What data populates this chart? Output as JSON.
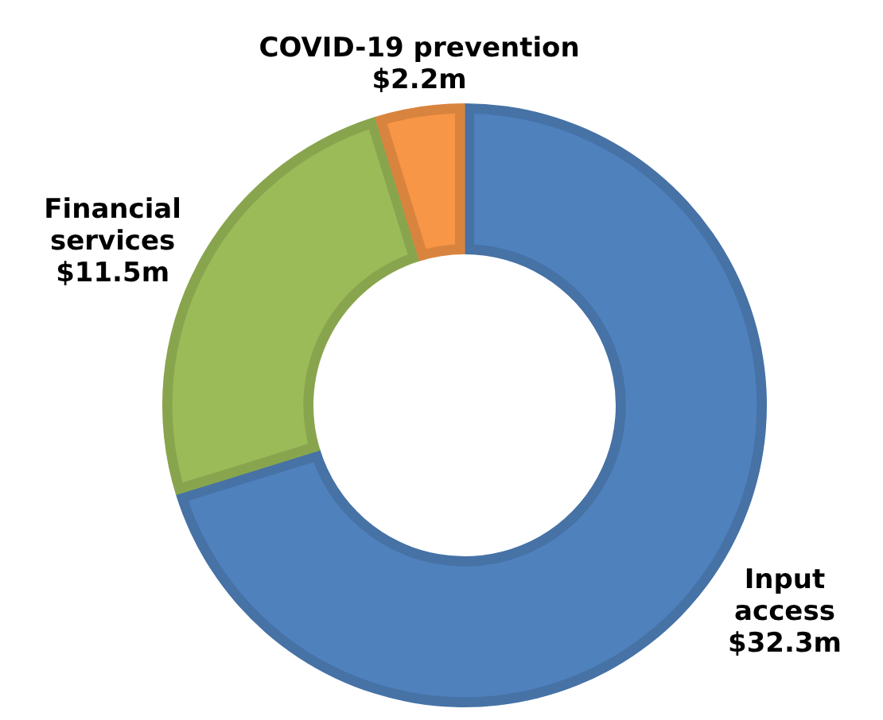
{
  "chart_data": {
    "type": "donut",
    "categories": [
      "Input access",
      "Financial services",
      "COVID-19 prevention"
    ],
    "values": [
      32.3,
      11.5,
      2.2
    ],
    "colors": [
      "#4f81bd",
      "#9bbb59",
      "#f79646"
    ],
    "value_labels": [
      "$32.3m",
      "$11.5m",
      "$2.2m"
    ],
    "legend": false
  }
}
